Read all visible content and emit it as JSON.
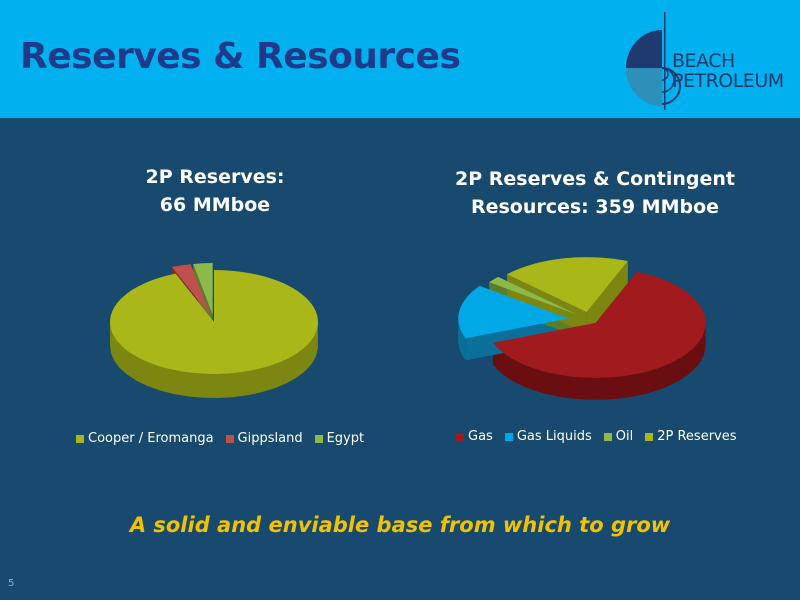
{
  "slide": {
    "title": "Reserves & Resources",
    "tagline": "A solid and enviable base from which to grow",
    "page_number": "5"
  },
  "logo": {
    "line1": "BEACH",
    "line2": "PETROLEUM"
  },
  "colors": {
    "header_bg": "#00b0ef",
    "slide_bg": "#174a6e",
    "title": "#1f3a8a",
    "tagline": "#f2c200"
  },
  "chart_data": [
    {
      "type": "pie",
      "title_line1": "2P Reserves:",
      "title_line2": "66 MMboe",
      "legend_position": "bottom",
      "slices": [
        {
          "name": "Cooper / Eromanga",
          "value": 94,
          "color": "#a9b818",
          "side": "#7b8710"
        },
        {
          "name": "Gippsland",
          "value": 3,
          "color": "#c0504d",
          "side": "#7e2a28"
        },
        {
          "name": "Egypt",
          "value": 3,
          "color": "#8db84a",
          "side": "#5d7d2a"
        }
      ]
    },
    {
      "type": "pie",
      "title_line1": "2P Reserves & Contingent",
      "title_line2": "Resources: 359 MMboe",
      "legend_position": "bottom",
      "slices": [
        {
          "name": "Gas",
          "value": 63,
          "color": "#a01a1e",
          "side": "#6a0e12"
        },
        {
          "name": "Gas Liquids",
          "value": 16,
          "color": "#00a9e6",
          "side": "#0a6f99"
        },
        {
          "name": "Oil",
          "value": 2,
          "color": "#8db84a",
          "side": "#5d7d2a"
        },
        {
          "name": "2P Reserves",
          "value": 19,
          "color": "#a9b818",
          "side": "#7b8710"
        }
      ]
    }
  ]
}
